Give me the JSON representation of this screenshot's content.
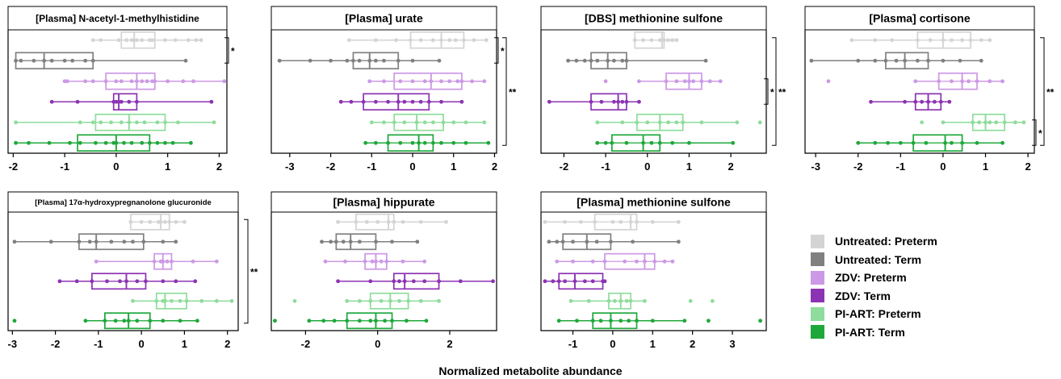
{
  "figure": {
    "x_axis_label": "Normalized metabolite abundance",
    "legend": [
      {
        "label": "Untreated: Preterm",
        "color": "#d4d4d4"
      },
      {
        "label": "Untreated: Term",
        "color": "#808080"
      },
      {
        "label": "ZDV: Preterm",
        "color": "#cc99e6"
      },
      {
        "label": "ZDV: Term",
        "color": "#8c33b3"
      },
      {
        "label": "PI-ART: Preterm",
        "color": "#8fdc9c"
      },
      {
        "label": "PI-ART: Term",
        "color": "#1ea83a"
      }
    ]
  },
  "chart_data": [
    {
      "type": "box",
      "title": "[Plasma] N-acetyl-1-methylhistidine",
      "xlim": [
        -2.1,
        2.15
      ],
      "xticks": [
        -2,
        -1,
        0,
        1,
        2
      ],
      "groups": [
        {
          "name": "Untreated: Preterm",
          "min": -0.45,
          "q1": 0.1,
          "median": 0.35,
          "q3": 0.75,
          "max": 1.65,
          "points": [
            -0.45,
            -0.3,
            0.05,
            0.2,
            0.3,
            0.35,
            0.4,
            0.5,
            0.65,
            0.7,
            0.95,
            1.15,
            1.4,
            1.55,
            1.65
          ]
        },
        {
          "name": "Untreated: Term",
          "min": -1.95,
          "q1": -1.95,
          "median": -1.4,
          "q3": -0.45,
          "max": 1.35,
          "points": [
            -1.95,
            -1.85,
            -1.6,
            -1.4,
            -1.25,
            -1.0,
            -0.85,
            -0.6,
            -0.45,
            1.35
          ]
        },
        {
          "name": "ZDV: Preterm",
          "min": -1.0,
          "q1": -0.2,
          "median": 0.4,
          "q3": 0.75,
          "max": 2.1,
          "points": [
            -1.0,
            -0.95,
            -0.6,
            -0.45,
            -0.2,
            0.0,
            0.1,
            0.3,
            0.4,
            0.5,
            0.6,
            0.7,
            0.75,
            1.0,
            1.3,
            1.5,
            2.1
          ]
        },
        {
          "name": "ZDV: Term",
          "min": -1.25,
          "q1": -0.05,
          "median": 0.05,
          "q3": 0.4,
          "max": 1.85,
          "points": [
            -1.25,
            -0.75,
            -0.05,
            0.0,
            0.05,
            0.1,
            0.25,
            0.4,
            1.85
          ]
        },
        {
          "name": "PI-ART: Preterm",
          "min": -1.95,
          "q1": -0.4,
          "median": 0.25,
          "q3": 0.95,
          "max": 1.9,
          "points": [
            -1.95,
            -0.7,
            -0.45,
            -0.3,
            -0.1,
            0.1,
            0.25,
            0.4,
            0.55,
            0.8,
            0.95,
            1.2,
            1.9
          ]
        },
        {
          "name": "PI-ART: Term",
          "min": -1.95,
          "q1": -0.75,
          "median": 0.0,
          "q3": 0.65,
          "max": 1.45,
          "points": [
            -1.95,
            -1.7,
            -1.3,
            -0.9,
            -0.7,
            -0.4,
            -0.2,
            -0.05,
            0.0,
            0.15,
            0.3,
            0.5,
            0.65,
            0.8,
            0.95,
            1.1,
            1.45
          ]
        }
      ],
      "significance": [
        {
          "from": 0,
          "to": 1,
          "label": "*"
        }
      ]
    },
    {
      "type": "box",
      "title": "[Plasma] urate",
      "xlim": [
        -3.45,
        2.05
      ],
      "xticks": [
        -3,
        -2,
        -1,
        0,
        1,
        2
      ],
      "groups": [
        {
          "name": "Untreated: Preterm",
          "min": -1.55,
          "q1": -0.05,
          "median": 0.7,
          "q3": 1.25,
          "max": 1.8,
          "points": [
            -1.55,
            -0.9,
            -0.4,
            -0.05,
            0.2,
            0.5,
            0.7,
            0.9,
            1.05,
            1.25,
            1.5,
            1.8
          ]
        },
        {
          "name": "Untreated: Term",
          "min": -3.25,
          "q1": -1.45,
          "median": -1.05,
          "q3": -0.35,
          "max": 0.65,
          "points": [
            -3.25,
            -2.5,
            -2.0,
            -1.6,
            -1.45,
            -1.3,
            -1.05,
            -0.9,
            -0.7,
            -0.35,
            0.0,
            0.65
          ]
        },
        {
          "name": "ZDV: Preterm",
          "min": -1.05,
          "q1": -0.45,
          "median": 0.45,
          "q3": 1.2,
          "max": 1.75,
          "points": [
            -1.05,
            -0.7,
            -0.3,
            0.0,
            0.3,
            0.45,
            0.7,
            0.9,
            1.1,
            1.2,
            1.45,
            1.75
          ]
        },
        {
          "name": "ZDV: Term",
          "min": -1.75,
          "q1": -1.2,
          "median": -0.35,
          "q3": 0.4,
          "max": 1.2,
          "points": [
            -1.75,
            -1.5,
            -1.2,
            -0.9,
            -0.6,
            -0.35,
            -0.2,
            0.0,
            0.2,
            0.4,
            0.7,
            1.2
          ]
        },
        {
          "name": "PI-ART: Preterm",
          "min": -1.0,
          "q1": -0.45,
          "median": 0.1,
          "q3": 0.75,
          "max": 1.75,
          "points": [
            -1.0,
            -0.7,
            -0.45,
            -0.2,
            0.1,
            0.3,
            0.5,
            0.75,
            1.0,
            1.3,
            1.75
          ]
        },
        {
          "name": "PI-ART: Term",
          "min": -1.15,
          "q1": -0.6,
          "median": 0.15,
          "q3": 0.5,
          "max": 1.85,
          "points": [
            -1.15,
            -0.9,
            -0.6,
            -0.3,
            0.0,
            0.15,
            0.3,
            0.5,
            0.7,
            1.0,
            1.3,
            1.85
          ]
        }
      ],
      "significance": [
        {
          "from": 0,
          "to": 1,
          "label": "*"
        },
        {
          "from": 0,
          "to": 5,
          "label": "**"
        }
      ]
    },
    {
      "type": "box",
      "title": "[DBS] methionine sulfone",
      "xlim": [
        -2.55,
        2.85
      ],
      "xticks": [
        -2,
        -1,
        0,
        1,
        2
      ],
      "groups": [
        {
          "name": "Untreated: Preterm",
          "min": -0.3,
          "q1": -0.3,
          "median": 0.35,
          "q3": 0.4,
          "max": 0.7,
          "points": [
            -0.3,
            -0.1,
            0.1,
            0.3,
            0.35,
            0.4,
            0.5,
            0.6,
            0.7
          ]
        },
        {
          "name": "Untreated: Term",
          "min": -1.9,
          "q1": -1.35,
          "median": -0.95,
          "q3": -0.5,
          "max": 1.4,
          "points": [
            -1.9,
            -1.7,
            -1.5,
            -1.35,
            -1.2,
            -0.95,
            -0.8,
            -0.6,
            -0.5,
            1.4
          ]
        },
        {
          "name": "ZDV: Preterm",
          "min": -0.2,
          "q1": 0.45,
          "median": 1.0,
          "q3": 1.3,
          "max": 1.75,
          "points": [
            -1.0,
            -0.2,
            0.45,
            0.7,
            0.9,
            1.0,
            1.1,
            1.3,
            1.5,
            1.75
          ]
        },
        {
          "name": "ZDV: Term",
          "min": -2.35,
          "q1": -1.35,
          "median": -0.7,
          "q3": -0.5,
          "max": -0.2,
          "points": [
            -2.35,
            -1.35,
            -1.1,
            -0.8,
            -0.7,
            -0.6,
            -0.5,
            -0.2
          ]
        },
        {
          "name": "PI-ART: Preterm",
          "min": -1.2,
          "q1": -0.25,
          "median": 0.3,
          "q3": 0.85,
          "max": 2.15,
          "points": [
            -1.2,
            -0.6,
            -0.25,
            0.0,
            0.3,
            0.5,
            0.7,
            0.85,
            1.3,
            2.15,
            2.7
          ]
        },
        {
          "name": "PI-ART: Term",
          "min": -1.2,
          "q1": -0.85,
          "median": -0.1,
          "q3": 0.3,
          "max": 2.05,
          "points": [
            -1.2,
            -1.0,
            -0.85,
            -0.5,
            -0.1,
            0.1,
            0.3,
            0.6,
            1.0,
            2.05
          ]
        }
      ],
      "significance": [
        {
          "from": 2,
          "to": 3,
          "label": "*"
        },
        {
          "from": 0,
          "to": 5,
          "label": "**"
        }
      ]
    },
    {
      "type": "box",
      "title": "[Plasma] cortisone",
      "xlim": [
        -3.25,
        2.15
      ],
      "xticks": [
        -3,
        -2,
        -1,
        0,
        1,
        2
      ],
      "groups": [
        {
          "name": "Untreated: Preterm",
          "min": -2.15,
          "q1": -0.6,
          "median": 0.0,
          "q3": 0.65,
          "max": 1.1,
          "points": [
            -2.15,
            -1.6,
            -1.2,
            -0.6,
            -0.3,
            0.0,
            0.2,
            0.45,
            0.65,
            0.9,
            1.1
          ]
        },
        {
          "name": "Untreated: Term",
          "min": -3.1,
          "q1": -1.35,
          "median": -0.9,
          "q3": -0.35,
          "max": 0.9,
          "points": [
            -3.1,
            -2.0,
            -1.6,
            -1.35,
            -1.1,
            -0.9,
            -0.6,
            -0.35,
            0.0,
            0.4,
            0.9
          ]
        },
        {
          "name": "ZDV: Preterm",
          "min": -0.65,
          "q1": -0.1,
          "median": 0.45,
          "q3": 0.8,
          "max": 1.4,
          "points": [
            -2.7,
            -0.65,
            -0.1,
            0.2,
            0.45,
            0.6,
            0.8,
            1.1,
            1.4
          ]
        },
        {
          "name": "ZDV: Term",
          "min": -1.7,
          "q1": -0.65,
          "median": -0.35,
          "q3": -0.05,
          "max": 0.15,
          "points": [
            -1.7,
            -0.9,
            -0.65,
            -0.5,
            -0.35,
            -0.2,
            -0.05,
            0.15
          ]
        },
        {
          "name": "PI-ART: Preterm",
          "min": 0.0,
          "q1": 0.7,
          "median": 1.0,
          "q3": 1.45,
          "max": 1.9,
          "points": [
            -0.5,
            0.0,
            0.7,
            0.85,
            1.0,
            1.1,
            1.25,
            1.45,
            1.7,
            1.9
          ]
        },
        {
          "name": "PI-ART: Term",
          "min": -2.0,
          "q1": -0.7,
          "median": 0.05,
          "q3": 0.45,
          "max": 1.4,
          "points": [
            -2.0,
            -1.6,
            -1.3,
            -1.0,
            -0.7,
            -0.4,
            0.05,
            0.2,
            0.45,
            0.8,
            1.4
          ]
        }
      ],
      "significance": [
        {
          "from": 4,
          "to": 5,
          "label": "*"
        },
        {
          "from": 0,
          "to": 5,
          "label": "**"
        }
      ]
    },
    {
      "type": "box",
      "title": "[Plasma] 17α-hydroxypregnanolone glucuronide",
      "xlim": [
        -3.1,
        2.25
      ],
      "xticks": [
        -3,
        -2,
        -1,
        0,
        1,
        2
      ],
      "groups": [
        {
          "name": "Untreated: Preterm",
          "min": -0.25,
          "q1": -0.25,
          "median": 0.45,
          "q3": 0.65,
          "max": 1.0,
          "points": [
            -0.25,
            0.0,
            0.2,
            0.4,
            0.45,
            0.55,
            0.65,
            0.8,
            1.0
          ]
        },
        {
          "name": "Untreated: Term",
          "min": -2.95,
          "q1": -1.45,
          "median": -1.05,
          "q3": 0.05,
          "max": 0.8,
          "points": [
            -2.95,
            -2.1,
            -1.45,
            -1.2,
            -1.05,
            -0.7,
            -0.4,
            -0.2,
            0.05,
            0.5,
            0.8
          ]
        },
        {
          "name": "ZDV: Preterm",
          "min": -1.05,
          "q1": 0.3,
          "median": 0.5,
          "q3": 0.7,
          "max": 1.75,
          "points": [
            -1.05,
            0.3,
            0.45,
            0.5,
            0.6,
            0.7,
            1.2,
            1.75
          ]
        },
        {
          "name": "ZDV: Term",
          "min": -1.9,
          "q1": -1.15,
          "median": -0.35,
          "q3": 0.1,
          "max": 1.25,
          "points": [
            -1.9,
            -1.5,
            -1.15,
            -0.8,
            -0.5,
            -0.35,
            -0.1,
            0.1,
            0.5,
            0.8,
            1.25
          ]
        },
        {
          "name": "PI-ART: Preterm",
          "min": -0.2,
          "q1": 0.35,
          "median": 0.55,
          "q3": 1.05,
          "max": 2.1,
          "points": [
            -0.2,
            0.35,
            0.5,
            0.55,
            0.7,
            0.9,
            1.05,
            1.4,
            1.75,
            2.1
          ]
        },
        {
          "name": "PI-ART: Term",
          "min": -1.3,
          "q1": -0.85,
          "median": -0.3,
          "q3": 0.2,
          "max": 1.3,
          "points": [
            -2.95,
            -1.3,
            -0.85,
            -0.6,
            -0.4,
            -0.3,
            -0.1,
            0.2,
            0.5,
            0.9,
            1.3
          ]
        }
      ],
      "significance": [
        {
          "from": 0,
          "to": 5,
          "label": "**"
        }
      ]
    },
    {
      "type": "box",
      "title": "[Plasma] hippurate",
      "xlim": [
        -2.95,
        3.3
      ],
      "xticks": [
        -2,
        0,
        2
      ],
      "groups": [
        {
          "name": "Untreated: Preterm",
          "min": -1.1,
          "q1": -0.6,
          "median": 0.3,
          "q3": 0.45,
          "max": 1.9,
          "points": [
            -1.1,
            -0.6,
            -0.3,
            0.0,
            0.3,
            0.45,
            0.7,
            1.2,
            1.9
          ]
        },
        {
          "name": "Untreated: Term",
          "min": -1.55,
          "q1": -1.15,
          "median": -0.75,
          "q3": -0.05,
          "max": 1.1,
          "points": [
            -1.55,
            -1.3,
            -1.15,
            -0.95,
            -0.75,
            -0.5,
            -0.05,
            0.4,
            1.1
          ]
        },
        {
          "name": "ZDV: Preterm",
          "min": -1.45,
          "q1": -0.35,
          "median": -0.05,
          "q3": 0.25,
          "max": 1.3,
          "points": [
            -1.45,
            -0.9,
            -0.35,
            -0.15,
            -0.05,
            0.1,
            0.25,
            0.7,
            1.3
          ]
        },
        {
          "name": "ZDV: Term",
          "min": -1.1,
          "q1": 0.45,
          "median": 0.75,
          "q3": 1.7,
          "max": 3.2,
          "points": [
            -1.1,
            -0.2,
            0.45,
            0.6,
            0.75,
            1.0,
            1.3,
            1.7,
            2.3,
            3.2
          ]
        },
        {
          "name": "PI-ART: Preterm",
          "min": -0.85,
          "q1": -0.2,
          "median": 0.35,
          "q3": 0.85,
          "max": 1.7,
          "points": [
            -2.3,
            -0.85,
            -0.5,
            -0.2,
            0.1,
            0.35,
            0.6,
            0.85,
            1.2,
            1.7
          ]
        },
        {
          "name": "PI-ART: Term",
          "min": -1.9,
          "q1": -0.85,
          "median": -0.05,
          "q3": 0.4,
          "max": 1.35,
          "points": [
            -2.85,
            -1.9,
            -1.5,
            -1.2,
            -0.85,
            -0.5,
            -0.2,
            -0.05,
            0.2,
            0.4,
            0.8,
            1.35
          ]
        }
      ],
      "significance": []
    },
    {
      "type": "box",
      "title": "[Plasma] methionine sulfone",
      "xlim": [
        -1.8,
        3.85
      ],
      "xticks": [
        -1,
        0,
        1,
        2,
        3
      ],
      "groups": [
        {
          "name": "Untreated: Preterm",
          "min": -1.7,
          "q1": -0.45,
          "median": 0.45,
          "q3": 0.6,
          "max": 1.65,
          "points": [
            -1.7,
            -1.2,
            -0.8,
            -0.45,
            0.0,
            0.2,
            0.45,
            0.6,
            1.0,
            1.65
          ]
        },
        {
          "name": "Untreated: Term",
          "min": -1.6,
          "q1": -1.25,
          "median": -0.65,
          "q3": -0.05,
          "max": 1.65,
          "points": [
            -1.6,
            -1.4,
            -1.25,
            -1.0,
            -0.65,
            -0.4,
            -0.05,
            0.5,
            1.65
          ]
        },
        {
          "name": "ZDV: Preterm",
          "min": -1.4,
          "q1": -0.2,
          "median": 0.8,
          "q3": 1.05,
          "max": 1.5,
          "points": [
            -1.4,
            -1.0,
            -0.5,
            -0.2,
            0.3,
            0.6,
            0.8,
            1.05,
            1.3,
            1.5
          ]
        },
        {
          "name": "ZDV: Term",
          "min": -1.7,
          "q1": -1.35,
          "median": -0.95,
          "q3": -0.25,
          "max": -0.2,
          "points": [
            -1.7,
            -1.5,
            -1.35,
            -1.2,
            -0.95,
            -0.7,
            -0.5,
            -0.25,
            -0.2
          ]
        },
        {
          "name": "PI-ART: Preterm",
          "min": -1.05,
          "q1": -0.1,
          "median": 0.2,
          "q3": 0.45,
          "max": 0.8,
          "points": [
            -1.05,
            -0.6,
            -0.1,
            0.05,
            0.2,
            0.35,
            0.45,
            0.8,
            1.95,
            2.5
          ]
        },
        {
          "name": "PI-ART: Term",
          "min": -1.35,
          "q1": -0.5,
          "median": -0.05,
          "q3": 0.6,
          "max": 1.8,
          "points": [
            -1.35,
            -0.9,
            -0.5,
            -0.3,
            -0.05,
            0.2,
            0.4,
            0.6,
            1.0,
            1.8,
            2.4,
            3.7
          ]
        }
      ],
      "significance": []
    }
  ]
}
